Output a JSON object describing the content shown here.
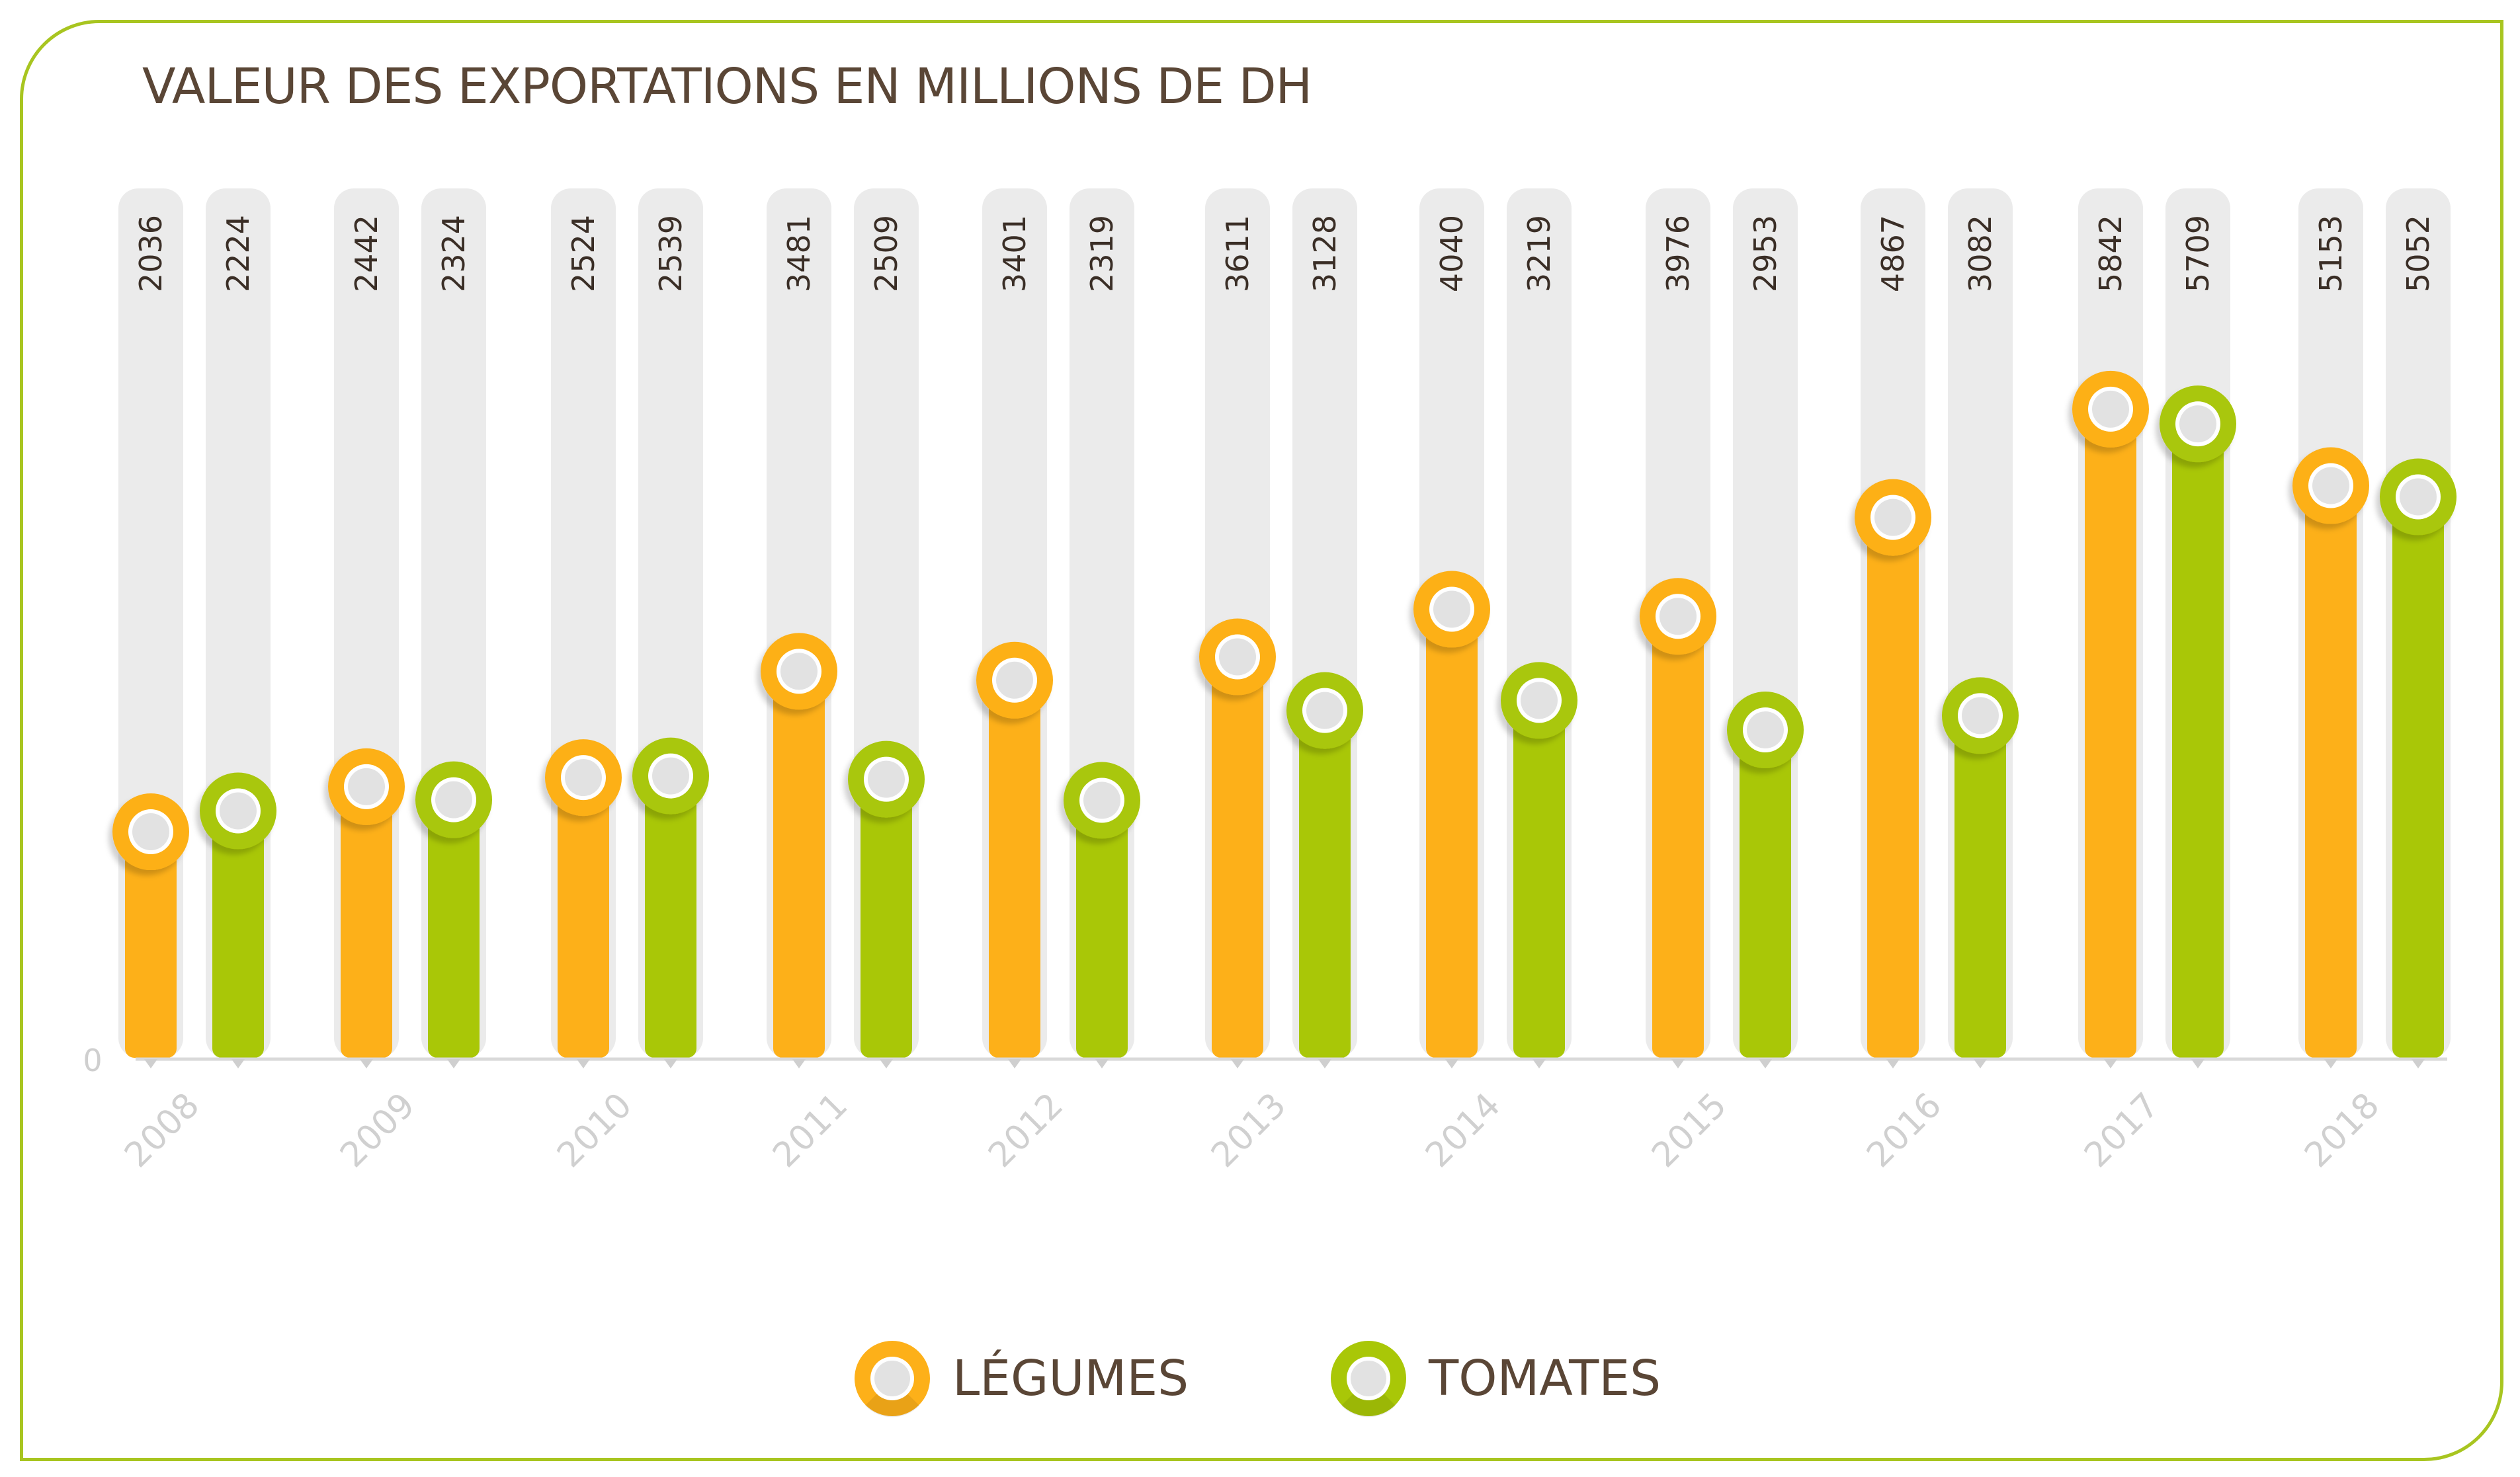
{
  "chart_data": {
    "type": "bar",
    "title": "VALEUR DES EXPORTATIONS EN MILLIONS DE DH",
    "categories": [
      "2008",
      "2009",
      "2010",
      "2011",
      "2012",
      "2013",
      "2014",
      "2015",
      "2016",
      "2017",
      "2018"
    ],
    "series": [
      {
        "name": "LÉGUMES",
        "color": "#fdb019",
        "values": [
          2036,
          2442,
          2524,
          3481,
          3401,
          3611,
          4040,
          3976,
          4867,
          5842,
          5153
        ]
      },
      {
        "name": "TOMATES",
        "color": "#a9c707",
        "values": [
          2224,
          2324,
          2539,
          2509,
          2319,
          3128,
          3219,
          2953,
          3082,
          5709,
          5052
        ]
      }
    ],
    "y_tick_label": "0",
    "ylim": [
      0,
      7800
    ],
    "grid": false,
    "legend_position": "bottom"
  },
  "colors": {
    "frame": "#a8c520",
    "track": "#ebebeb",
    "title": "#5a4636",
    "year_label": "#d0d0d0",
    "legumes": "#fdb019",
    "tomates": "#a9c707"
  }
}
